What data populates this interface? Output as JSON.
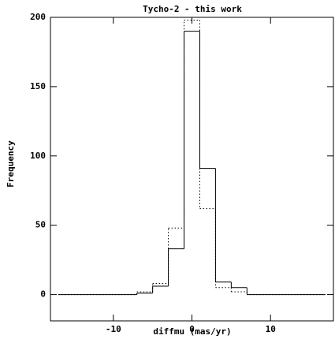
{
  "chart_data": {
    "type": "histogram",
    "title": "Tycho-2 - this work",
    "xlabel": "diffmu (mas/yr)",
    "ylabel": "Frequency",
    "bins": [
      -17,
      -15,
      -13,
      -11,
      -9,
      -7,
      -5,
      -3,
      -1,
      1,
      3,
      5,
      7,
      9,
      11,
      13,
      15,
      17
    ],
    "series": [
      {
        "color": "#000000",
        "style": "solid",
        "values": [
          0,
          0,
          0,
          0,
          0,
          1,
          6,
          33,
          190,
          91,
          9,
          5,
          0,
          0,
          0,
          0,
          0
        ]
      },
      {
        "color": "#000000",
        "style": "dotted",
        "values": [
          0,
          0,
          0,
          0,
          0,
          2,
          8,
          48,
          198,
          62,
          5,
          2,
          0,
          0,
          0,
          0,
          0
        ]
      }
    ],
    "xlim": [
      -18,
      18
    ],
    "ylim": [
      -19,
      200
    ],
    "xticks": [
      -10,
      0,
      10
    ],
    "yticks": [
      0,
      50,
      100,
      150,
      200
    ]
  }
}
